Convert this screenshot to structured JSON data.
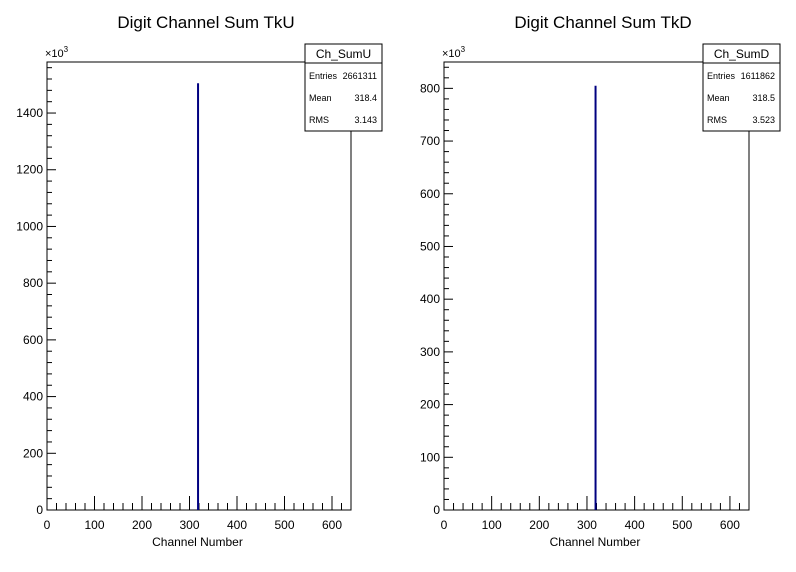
{
  "chart_data": [
    {
      "type": "bar",
      "title": "Digit Channel Sum TkU",
      "xlabel": "Channel Number",
      "ylabel": "",
      "xlim": [
        0,
        640
      ],
      "ylim": [
        0,
        1580
      ],
      "x_ticks": [
        0,
        100,
        200,
        300,
        400,
        500,
        600
      ],
      "y_ticks": [
        0,
        200,
        400,
        600,
        800,
        1000,
        1200,
        1400
      ],
      "y_multiplier": "×10",
      "y_multiplier_exp": "3",
      "bins": [
        {
          "x": 318,
          "value": 1505
        }
      ],
      "line_color": "#000080",
      "stats": {
        "name": "Ch_SumU",
        "rows": [
          {
            "label": "Entries",
            "value": "2661311"
          },
          {
            "label": "Mean",
            "value": "318.4"
          },
          {
            "label": "RMS",
            "value": "3.143"
          }
        ]
      }
    },
    {
      "type": "bar",
      "title": "Digit Channel Sum TkD",
      "xlabel": "Channel Number",
      "ylabel": "",
      "xlim": [
        0,
        640
      ],
      "ylim": [
        0,
        850
      ],
      "x_ticks": [
        0,
        100,
        200,
        300,
        400,
        500,
        600
      ],
      "y_ticks": [
        0,
        100,
        200,
        300,
        400,
        500,
        600,
        700,
        800
      ],
      "y_multiplier": "×10",
      "y_multiplier_exp": "3",
      "bins": [
        {
          "x": 318,
          "value": 805
        }
      ],
      "line_color": "#000080",
      "stats": {
        "name": "Ch_SumD",
        "rows": [
          {
            "label": "Entries",
            "value": "1611862"
          },
          {
            "label": "Mean",
            "value": "318.5"
          },
          {
            "label": "RMS",
            "value": "3.523"
          }
        ]
      }
    }
  ]
}
